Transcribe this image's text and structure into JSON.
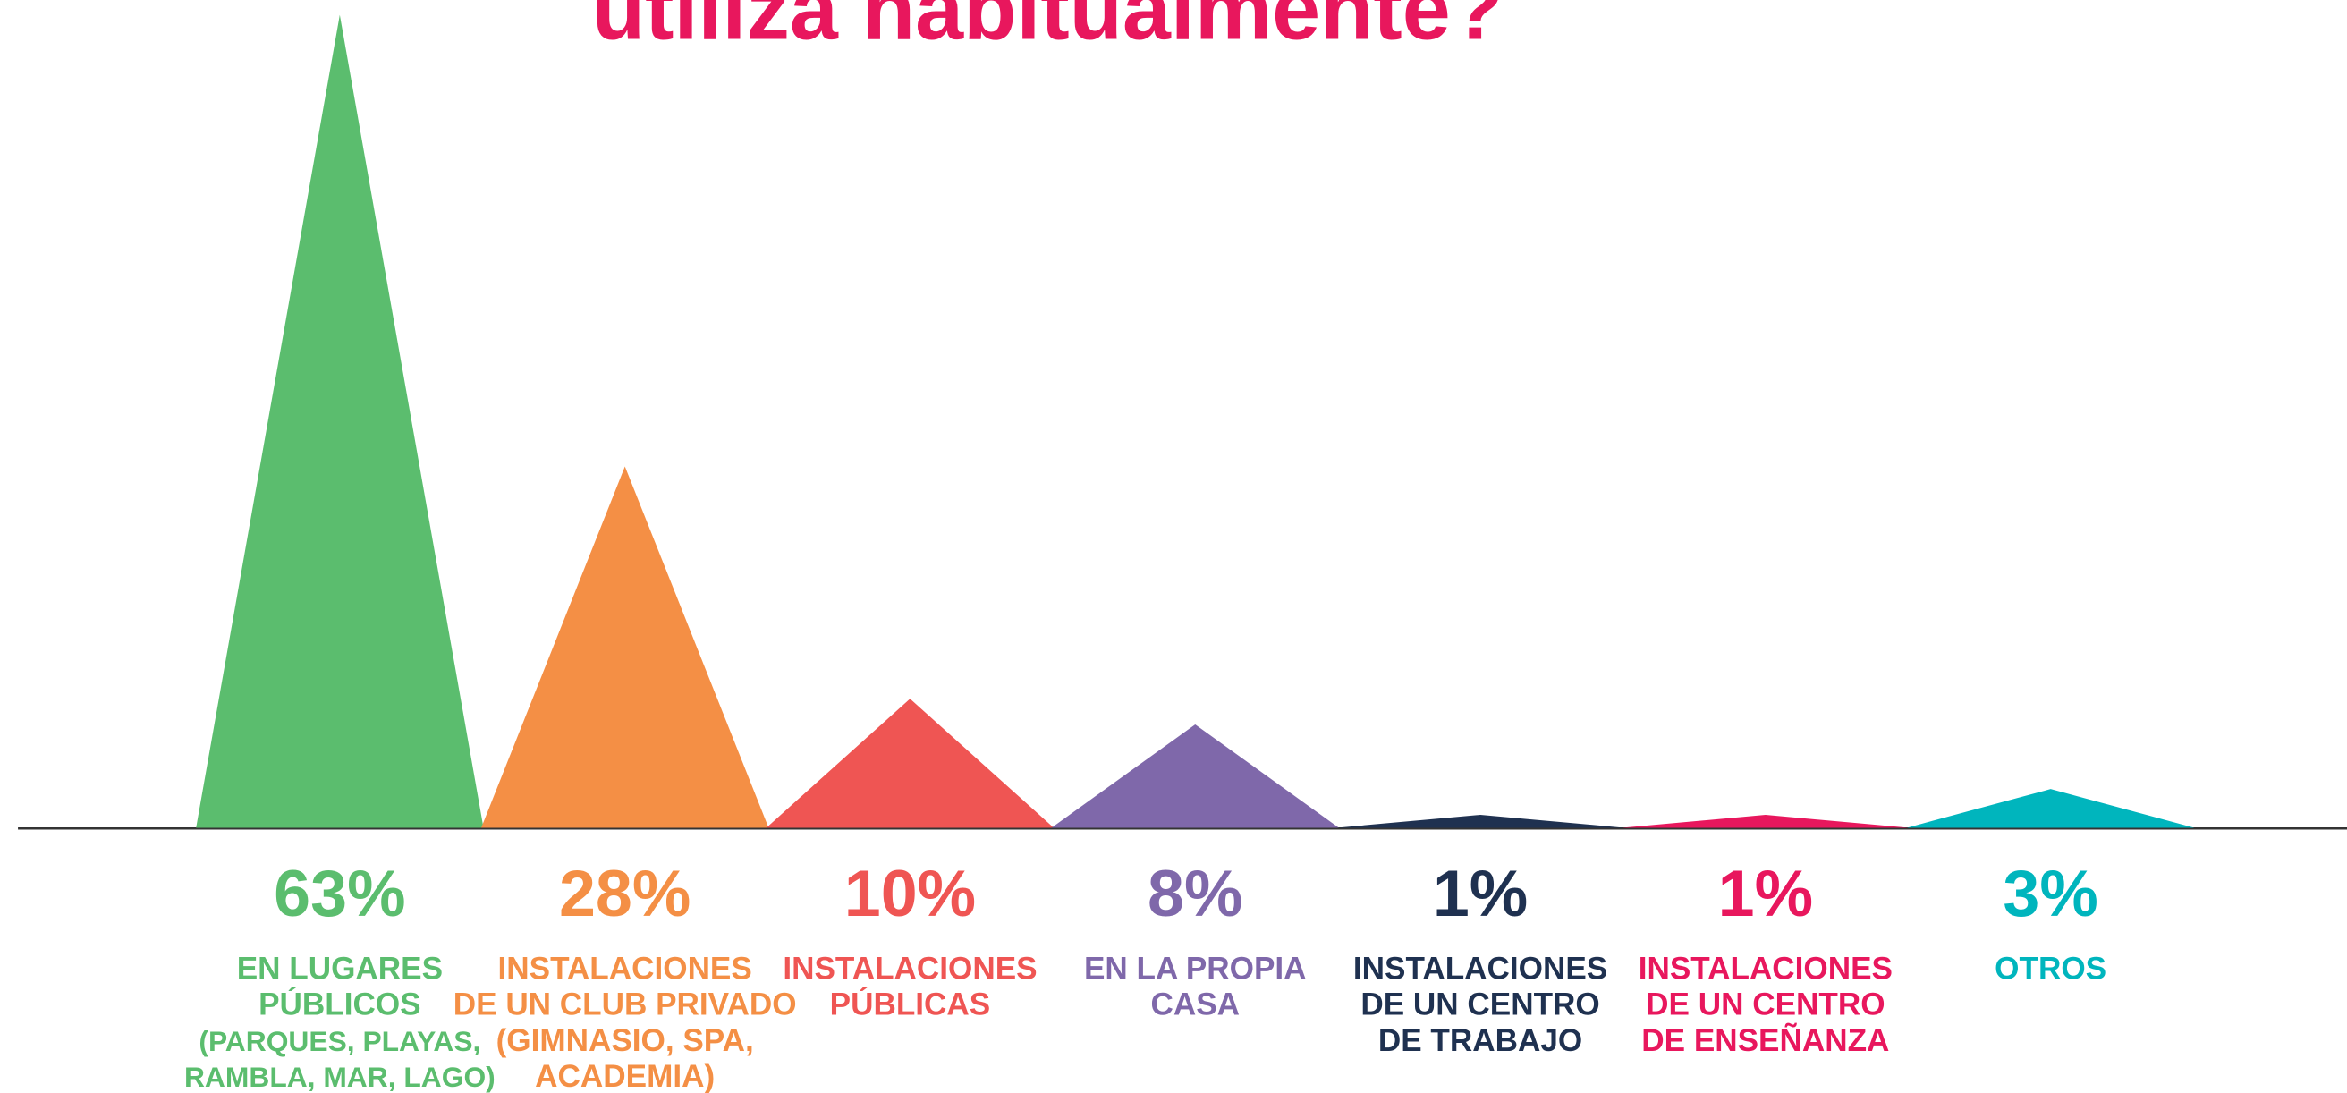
{
  "chart_data": {
    "type": "peak",
    "title": "utiliza habitualmente?",
    "title_color": "#e8175d",
    "categories": [
      [
        "EN LUGARES",
        "PÚBLICOS",
        "(PARQUES, PLAYAS,",
        "RAMBLA, MAR, LAGO)"
      ],
      [
        "INSTALACIONES",
        "DE UN CLUB PRIVADO",
        "(GIMNASIO, SPA,",
        "ACADEMIA)"
      ],
      [
        "INSTALACIONES",
        "PÚBLICAS"
      ],
      [
        "EN LA PROPIA",
        "CASA"
      ],
      [
        "INSTALACIONES",
        "DE UN CENTRO",
        "DE TRABAJO"
      ],
      [
        "INSTALACIONES",
        "DE UN CENTRO",
        "DE ENSEÑANZA"
      ],
      [
        "OTROS"
      ]
    ],
    "values": [
      63,
      28,
      10,
      8,
      1,
      1,
      3
    ],
    "value_labels": [
      "63%",
      "28%",
      "10%",
      "8%",
      "1%",
      "1%",
      "3%"
    ],
    "colors": [
      "#5bbd6e",
      "#f48f45",
      "#ef5553",
      "#7f68aa",
      "#1f3150",
      "#e8175d",
      "#00b5bd"
    ]
  }
}
